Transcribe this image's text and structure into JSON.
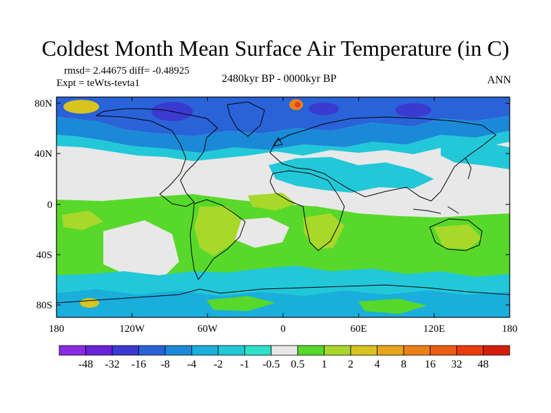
{
  "title": "Coldest Month Mean Surface Air Temperature (in C)",
  "stats": {
    "rmsd_label": "rmsd= 2.44675 diff= -0.48925",
    "experiment_label": "Expt = teWts-tevta1"
  },
  "period_label": "2480kyr BP - 0000kyr BP",
  "season_label": "ANN",
  "map": {
    "lat_ticks": [
      "80N",
      "40N",
      "0",
      "40S",
      "80S"
    ],
    "lon_ticks": [
      "180",
      "120W",
      "60W",
      "0",
      "60E",
      "120E",
      "180"
    ]
  },
  "colorbar": {
    "labels": [
      "-48",
      "-32",
      "-16",
      "-8",
      "-4",
      "-2",
      "-1",
      "-0.5",
      "0.5",
      "1",
      "2",
      "4",
      "8",
      "16",
      "32",
      "48"
    ],
    "colors": [
      "#8a2be2",
      "#6a22d8",
      "#3a3ad0",
      "#2a62d8",
      "#1a8ad8",
      "#1aaedc",
      "#22c8d8",
      "#2ee0c8",
      "#e8e8e8",
      "#58d82a",
      "#a8d82a",
      "#d8c41e",
      "#e8a41a",
      "#ec8018",
      "#ec5c14",
      "#e83c10",
      "#d41e0c"
    ]
  }
}
